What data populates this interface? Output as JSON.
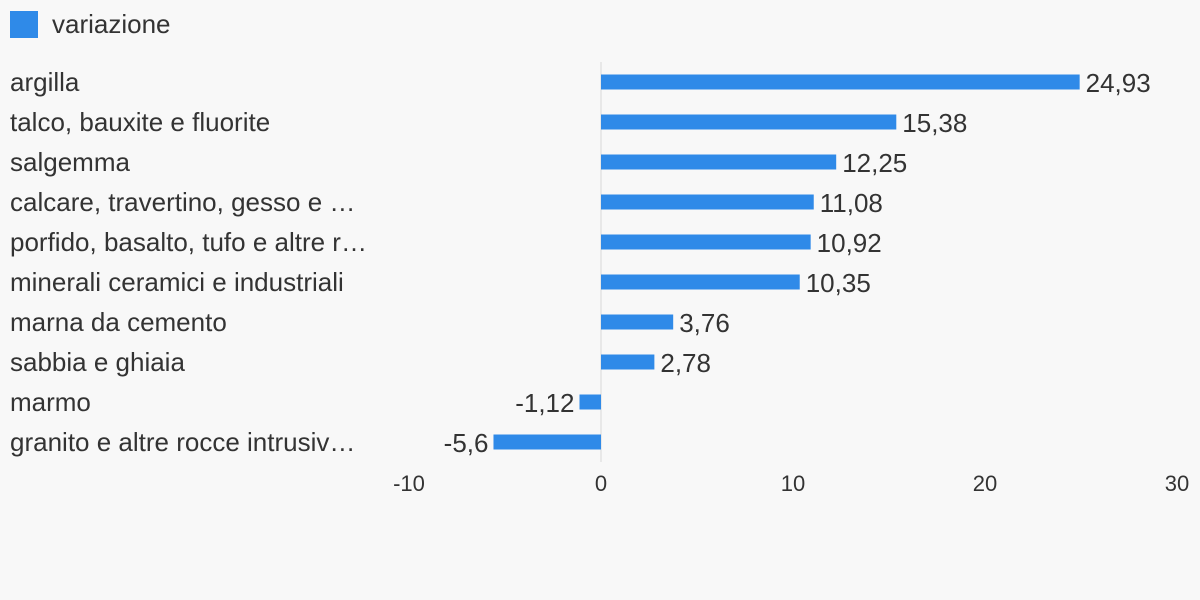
{
  "legend": {
    "label": "variazione",
    "color": "#2f8ae8"
  },
  "chart_data": {
    "type": "bar",
    "orientation": "horizontal",
    "categories": [
      "argilla",
      "talco, bauxite e fluorite",
      "salgemma",
      "calcare, travertino, gesso e …",
      "porfido, basalto, tufo e altre r…",
      "minerali ceramici e industriali",
      "marna da cemento",
      "sabbia e ghiaia",
      "marmo",
      "granito e altre rocce intrusiv…"
    ],
    "value_labels": [
      "24,93",
      "15,38",
      "12,25",
      "11,08",
      "10,92",
      "10,35",
      "3,76",
      "2,78",
      "-1,12",
      "-5,6"
    ],
    "series": [
      {
        "name": "variazione",
        "values": [
          24.93,
          15.38,
          12.25,
          11.08,
          10.92,
          10.35,
          3.76,
          2.78,
          -1.12,
          -5.6
        ]
      }
    ],
    "xlim": [
      -10,
      30
    ],
    "xticks": [
      "-10",
      "0",
      "10",
      "20",
      "30"
    ],
    "xtick_values": [
      -10,
      0,
      10,
      20,
      30
    ],
    "legend_position": "top-left",
    "grid": false,
    "bar_color": "#2f8ae8",
    "zero_line_color": "#d8d8d8"
  }
}
